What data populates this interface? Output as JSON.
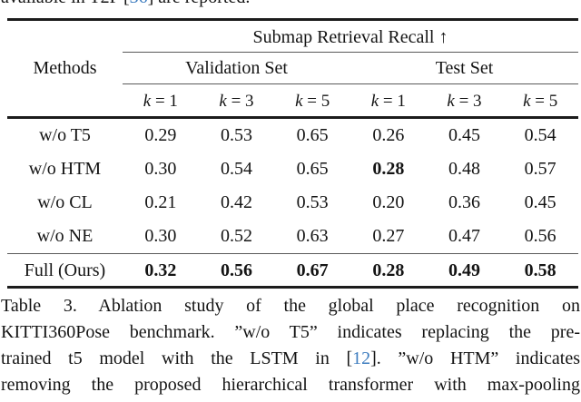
{
  "page": {
    "background": "#ffffff",
    "text_color": "#141414",
    "citation_color": "#3e7dbf"
  },
  "clipped_top_line": {
    "parts": [
      {
        "text": "available in T2P ["
      },
      {
        "text": "36",
        "cite": true
      },
      {
        "text": "] are reported."
      }
    ]
  },
  "table": {
    "title": "Submap Retrieval Recall ↑",
    "methods_header": "Methods",
    "group_headers": [
      "Validation Set",
      "Test Set"
    ],
    "k_columns": [
      {
        "var": "k",
        "rest": "= 1"
      },
      {
        "var": "k",
        "rest": "= 3"
      },
      {
        "var": "k",
        "rest": "= 5"
      },
      {
        "var": "k",
        "rest": "= 1"
      },
      {
        "var": "k",
        "rest": "= 3"
      },
      {
        "var": "k",
        "rest": "= 5"
      }
    ],
    "rows": [
      {
        "label": "w/o T5",
        "values": [
          "0.29",
          "0.53",
          "0.65",
          "0.26",
          "0.45",
          "0.54"
        ],
        "bold": [
          false,
          false,
          false,
          false,
          false,
          false
        ]
      },
      {
        "label": "w/o HTM",
        "values": [
          "0.30",
          "0.54",
          "0.65",
          "0.28",
          "0.48",
          "0.57"
        ],
        "bold": [
          false,
          false,
          false,
          true,
          false,
          false
        ]
      },
      {
        "label": "w/o CL",
        "values": [
          "0.21",
          "0.42",
          "0.53",
          "0.20",
          "0.36",
          "0.45"
        ],
        "bold": [
          false,
          false,
          false,
          false,
          false,
          false
        ]
      },
      {
        "label": "w/o NE",
        "values": [
          "0.30",
          "0.52",
          "0.63",
          "0.27",
          "0.47",
          "0.56"
        ],
        "bold": [
          false,
          false,
          false,
          false,
          false,
          false
        ]
      }
    ],
    "full_row": {
      "label": "Full (Ours)",
      "values": [
        "0.32",
        "0.56",
        "0.67",
        "0.28",
        "0.49",
        "0.58"
      ],
      "bold": [
        true,
        true,
        true,
        true,
        true,
        true
      ]
    }
  },
  "caption": {
    "lines": [
      {
        "parts": [
          {
            "text": "Table 3.  Ablation study of the global place recognition on"
          }
        ]
      },
      {
        "parts": [
          {
            "text": "KITTI360Pose benchmark. ”w/o T5” indicates replacing the pre-"
          }
        ]
      },
      {
        "parts": [
          {
            "text": "trained t5 model with the LSTM in  ["
          },
          {
            "text": "12",
            "cite": true
          },
          {
            "text": "].  ”w/o HTM” indicates"
          }
        ]
      },
      {
        "parts": [
          {
            "text": "removing the proposed hierarchical transformer with max-pooling"
          }
        ]
      }
    ]
  }
}
